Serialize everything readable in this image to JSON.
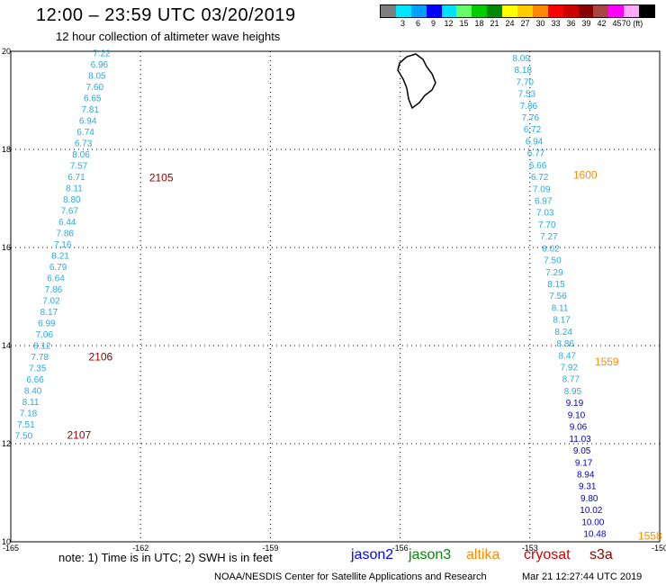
{
  "title": "12:00 – 23:59 UTC 03/20/2019",
  "subtitle": "12 hour collection of altimeter wave heights",
  "colorbar": {
    "colors": [
      "#7f7f7f",
      "#00e5ff",
      "#00a0ff",
      "#0000ff",
      "#00e0ff",
      "#66ff66",
      "#00cc00",
      "#008800",
      "#ffff00",
      "#ffcc00",
      "#ff8800",
      "#ff0000",
      "#cc0000",
      "#880000",
      "#aa4444",
      "#ff00ff",
      "#ffaaff",
      "#000000"
    ],
    "labels": [
      "3",
      "6",
      "9",
      "12",
      "15",
      "18",
      "21",
      "24",
      "27",
      "30",
      "33",
      "36",
      "39",
      "42",
      "45",
      "70 (ft)"
    ]
  },
  "map": {
    "lon_range": [
      -165,
      -150
    ],
    "lat_range": [
      10,
      20
    ],
    "x_ticks": [
      "-165",
      "-162",
      "-159",
      "-156",
      "-153",
      "-150"
    ],
    "y_ticks": [
      "10",
      "12",
      "14",
      "16",
      "18",
      "20"
    ],
    "island": "Big Island of Hawaii outline"
  },
  "tracks": [
    {
      "name": "west",
      "color": "#29a9e0",
      "values": [
        "7.22",
        "6.96",
        "8.05",
        "7.60",
        "6.65",
        "7.81",
        "6.94",
        "6.74",
        "6.73",
        "8.06",
        "7.57",
        "6.71",
        "8.11",
        "8.80",
        "7.67",
        "6.44",
        "7.86",
        "7.16",
        "8.21",
        "6.79",
        "6.64",
        "7.86",
        "7.02",
        "8.17",
        "6.99",
        "7.06",
        "8.12",
        "7.78",
        "7.35",
        "6.66",
        "8.40",
        "8.11",
        "7.18",
        "7.51",
        "7.50"
      ],
      "lon_start": -162.9,
      "lon_end": -164.7,
      "lat_start": 19.9,
      "lat_end": 12.1
    },
    {
      "name": "east",
      "colors_by_index": "cyan-then-blue",
      "values": [
        "8.09",
        "8.18",
        "7.70",
        "7.53",
        "7.86",
        "7.76",
        "6.72",
        "6.94",
        "6.77",
        "6.66",
        "6.72",
        "7.09",
        "6.97",
        "7.03",
        "7.70",
        "7.27",
        "8.02",
        "7.50",
        "7.29",
        "8.15",
        "7.56",
        "8.11",
        "8.17",
        "8.24",
        "8.86",
        "8.47",
        "7.92",
        "8.77",
        "8.95",
        "9.19",
        "9.10",
        "9.06",
        "11.03",
        "9.05",
        "9.17",
        "8.94",
        "9.31",
        "9.80",
        "10.02",
        "10.00",
        "10.48"
      ],
      "lon_start": -153.2,
      "lon_end": -151.5,
      "lat_start": 19.8,
      "lat_end": 10.1
    }
  ],
  "time_labels": [
    {
      "text": "2105",
      "color": "#8b0000",
      "lon": -161.8,
      "lat": 17.35
    },
    {
      "text": "2106",
      "color": "#8b0000",
      "lon": -163.2,
      "lat": 13.7
    },
    {
      "text": "2107",
      "color": "#8b0000",
      "lon": -163.7,
      "lat": 12.1
    },
    {
      "text": "1600",
      "color": "#ff8c00",
      "lon": -152.0,
      "lat": 17.4
    },
    {
      "text": "1559",
      "color": "#ff8c00",
      "lon": -151.5,
      "lat": 13.6
    },
    {
      "text": "1558",
      "color": "#ff8c00",
      "lon": -150.5,
      "lat": 10.05
    }
  ],
  "note": "note: 1) Time is in UTC; 2) SWH is in feet",
  "legend": [
    {
      "label": "jason2",
      "color": "#0000ff"
    },
    {
      "label": "jason3",
      "color": "#008800"
    },
    {
      "label": "altika",
      "color": "#ff8c00"
    },
    {
      "label": "cryosat",
      "color": "#cc0000"
    },
    {
      "label": "s3a",
      "color": "#8b0000"
    }
  ],
  "credits": "NOAA/NESDIS Center for Satellite Applications and Research",
  "timestamp": "Mar 21 12:27:44 UTC 2019"
}
